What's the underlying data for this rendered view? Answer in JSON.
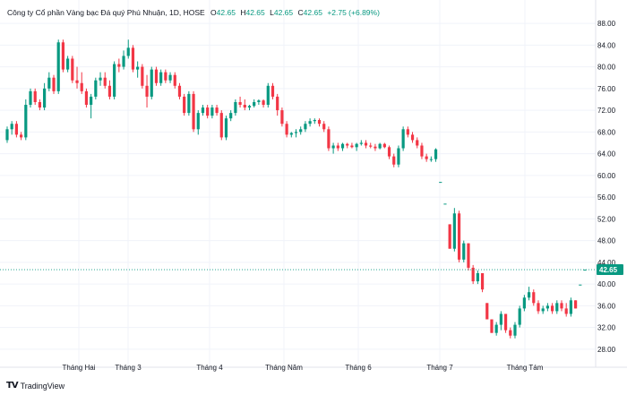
{
  "header": {
    "symbol": "Công ty Cổ phần Vàng bạc Đá quý Phú Nhuận, 1D, HOSE",
    "o_label": "O",
    "o_value": "42.65",
    "h_label": "H",
    "h_value": "42.65",
    "l_label": "L",
    "l_value": "42.65",
    "c_label": "C",
    "c_value": "42.65",
    "change": "+2.75 (+6.89%)"
  },
  "brand": {
    "logo": "TV",
    "name": "TradingView"
  },
  "colors": {
    "up": "#089981",
    "down": "#f23645",
    "grid": "#f0f3fa",
    "last_price_bg": "#089981"
  },
  "chart_data": {
    "type": "candlestick",
    "y_ticks": [
      "28.00",
      "32.00",
      "36.00",
      "40.00",
      "44.00",
      "48.00",
      "52.00",
      "56.00",
      "60.00",
      "64.00",
      "68.00",
      "72.00",
      "76.00",
      "80.00",
      "84.00",
      "88.00"
    ],
    "ylim": [
      26,
      89
    ],
    "x_ticks": [
      "Tháng Hai",
      "Tháng 3",
      "Tháng 4",
      "Tháng Năm",
      "Tháng 6",
      "Tháng 7",
      "Tháng Tám"
    ],
    "last_price": "42.65",
    "grid": true,
    "candles": [
      [
        66.5,
        69,
        66,
        68.5
      ],
      [
        68.5,
        70,
        67.5,
        69.5
      ],
      [
        69.5,
        70,
        67,
        67.5
      ],
      [
        67.5,
        68,
        66.5,
        67
      ],
      [
        67,
        74,
        66.5,
        73
      ],
      [
        73,
        76,
        72.5,
        75.5
      ],
      [
        75.5,
        76,
        73,
        73.5
      ],
      [
        73.5,
        74,
        72,
        72.5
      ],
      [
        72.5,
        77,
        72,
        76
      ],
      [
        76,
        79,
        75.5,
        78
      ],
      [
        78,
        78.5,
        75,
        75.5
      ],
      [
        75.5,
        85,
        75,
        84.5
      ],
      [
        84.5,
        85,
        79,
        79.5
      ],
      [
        79.5,
        82,
        79,
        81.5
      ],
      [
        81.5,
        82,
        77,
        77.5
      ],
      [
        77.5,
        80,
        76,
        77
      ],
      [
        77,
        79,
        75,
        75.5
      ],
      [
        75.5,
        76,
        72.5,
        73
      ],
      [
        73,
        75,
        70.5,
        74.5
      ],
      [
        74.5,
        78,
        74,
        77.5
      ],
      [
        77.5,
        79,
        76.5,
        78
      ],
      [
        78,
        79,
        76,
        76.5
      ],
      [
        76.5,
        77.5,
        74,
        74.5
      ],
      [
        74.5,
        81,
        74,
        80.5
      ],
      [
        80.5,
        81.5,
        79,
        80
      ],
      [
        80,
        83,
        79.5,
        82
      ],
      [
        82,
        85,
        81.5,
        83.5
      ],
      [
        83.5,
        84,
        79,
        79.5
      ],
      [
        79.5,
        81,
        78,
        80
      ],
      [
        80,
        80.5,
        76,
        76.5
      ],
      [
        76.5,
        78.5,
        72.5,
        74.5
      ],
      [
        74.5,
        80,
        74,
        79.5
      ],
      [
        79.5,
        80,
        76.5,
        77
      ],
      [
        77,
        79.5,
        76.5,
        79
      ],
      [
        79,
        79.5,
        77,
        77.5
      ],
      [
        77.5,
        79,
        77,
        78.5
      ],
      [
        78.5,
        79,
        76,
        76.5
      ],
      [
        76.5,
        77,
        74,
        74.5
      ],
      [
        74.5,
        75,
        71,
        71.5
      ],
      [
        71.5,
        75.5,
        71,
        75
      ],
      [
        75,
        75.5,
        68,
        68.5
      ],
      [
        68.5,
        72,
        67.5,
        71.5
      ],
      [
        71.5,
        73,
        71,
        72.5
      ],
      [
        72.5,
        73,
        70.5,
        71
      ],
      [
        71,
        73,
        70.5,
        72.5
      ],
      [
        72.5,
        73,
        71,
        71.5
      ],
      [
        71.5,
        72,
        66.5,
        67
      ],
      [
        67,
        71,
        66.5,
        70.5
      ],
      [
        70.5,
        72,
        70,
        71.5
      ],
      [
        71.5,
        74,
        71,
        73.5
      ],
      [
        73.5,
        74.5,
        72.5,
        73
      ],
      [
        73,
        74,
        72,
        72.5
      ],
      [
        72.5,
        73,
        72,
        72.8
      ],
      [
        72.8,
        74,
        72.5,
        73.5
      ],
      [
        73.5,
        74,
        73,
        73.8
      ],
      [
        73.8,
        74,
        72.5,
        73
      ],
      [
        73,
        77,
        72.5,
        76.5
      ],
      [
        76.5,
        77,
        74,
        74.5
      ],
      [
        74.5,
        75,
        71,
        72
      ],
      [
        72,
        72.5,
        69,
        69.5
      ],
      [
        69.5,
        70,
        67,
        67.5
      ],
      [
        67.5,
        68,
        67,
        67.8
      ],
      [
        67.8,
        68.5,
        67,
        68
      ],
      [
        68,
        69,
        67.5,
        68.5
      ],
      [
        68.5,
        70,
        68,
        69.5
      ],
      [
        69.5,
        70.5,
        69,
        70
      ],
      [
        70,
        70.5,
        69.5,
        70.2
      ],
      [
        70.2,
        70.5,
        69,
        69.5
      ],
      [
        69.5,
        70,
        68,
        68.5
      ],
      [
        68.5,
        69,
        64.5,
        65
      ],
      [
        65,
        66,
        64,
        65.5
      ],
      [
        65.5,
        66,
        64.5,
        65
      ],
      [
        65,
        66,
        64.5,
        65.8
      ],
      [
        65.8,
        66,
        65,
        65.5
      ],
      [
        65.5,
        66,
        65,
        65.2
      ],
      [
        65.2,
        66,
        64.5,
        65.8
      ],
      [
        65.8,
        66.5,
        65.5,
        66
      ],
      [
        66,
        66.5,
        65,
        65.5
      ],
      [
        65.5,
        66,
        65,
        65.3
      ],
      [
        65.3,
        65.8,
        64.5,
        65
      ],
      [
        65,
        66,
        64.8,
        65.8
      ],
      [
        65.8,
        66,
        65,
        65.2
      ],
      [
        65.2,
        65.5,
        63,
        63.5
      ],
      [
        63.5,
        64,
        61.5,
        62
      ],
      [
        62,
        65.5,
        61.5,
        65
      ],
      [
        65,
        69,
        64.5,
        68.5
      ],
      [
        68.5,
        69,
        67,
        67.5
      ],
      [
        67.5,
        68,
        66,
        66.5
      ],
      [
        66.5,
        67,
        65,
        65.5
      ],
      [
        65.5,
        66,
        63,
        63.5
      ],
      [
        63.5,
        64,
        62.5,
        63
      ],
      [
        63,
        63.5,
        62.5,
        63
      ],
      [
        63,
        65,
        62.5,
        64.8
      ],
      [
        58.8,
        58.8,
        58.8,
        58.8
      ],
      [
        54.8,
        54.8,
        54.8,
        54.8
      ],
      [
        51,
        51,
        46.5,
        46.5
      ],
      [
        46.5,
        54,
        46,
        53
      ],
      [
        53,
        53.5,
        44,
        44.5
      ],
      [
        44.5,
        48,
        44,
        47.5
      ],
      [
        47.5,
        47.5,
        42.5,
        43
      ],
      [
        43,
        43.5,
        40,
        40.5
      ],
      [
        40.5,
        42.5,
        40,
        42
      ],
      [
        42,
        42,
        38.5,
        39
      ],
      [
        36.5,
        36.5,
        33.5,
        33.5
      ],
      [
        33.5,
        33.5,
        31,
        31
      ],
      [
        31,
        33,
        30.5,
        32.5
      ],
      [
        32.5,
        35,
        31.5,
        34.5
      ],
      [
        34.5,
        34.5,
        31,
        31.5
      ],
      [
        31.5,
        32,
        30,
        30.5
      ],
      [
        30.5,
        33,
        30,
        32.5
      ],
      [
        32.5,
        36,
        32,
        35.5
      ],
      [
        35.5,
        38,
        35,
        37.5
      ],
      [
        37.5,
        39.5,
        37,
        38.5
      ],
      [
        38.5,
        39,
        36,
        36.5
      ],
      [
        36.5,
        37,
        34.5,
        35
      ],
      [
        35,
        36,
        34.5,
        35.5
      ],
      [
        35.5,
        36.5,
        35,
        36
      ],
      [
        36,
        36.5,
        34.5,
        35
      ],
      [
        35,
        37,
        34.5,
        36.5
      ],
      [
        36.5,
        37,
        35,
        35.5
      ],
      [
        35.5,
        36.5,
        34,
        34.5
      ],
      [
        34.5,
        37.5,
        34,
        37
      ],
      [
        37,
        37,
        35.5,
        35.5
      ],
      [
        39.9,
        39.9,
        39.9,
        39.9
      ],
      [
        42.65,
        42.65,
        42.65,
        42.65
      ]
    ]
  }
}
